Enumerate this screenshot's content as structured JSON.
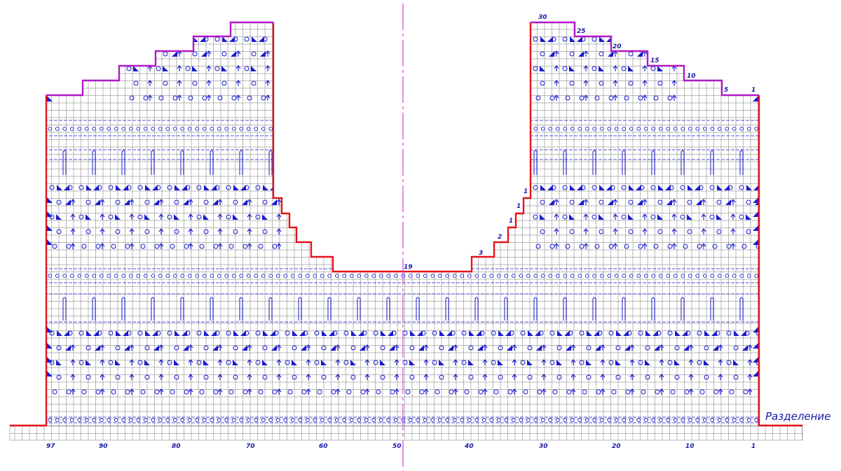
{
  "chart": {
    "caption": "Разделение",
    "axis_labels": [
      "97",
      "90",
      "80",
      "70",
      "60",
      "50",
      "40",
      "30",
      "20",
      "10",
      "1"
    ],
    "center_row_label": "19",
    "right_neck_step_labels": [
      "1",
      "1",
      "1",
      "2",
      "3"
    ],
    "right_shoulder_labels": [
      "30",
      "25",
      "20",
      "15",
      "10",
      "5",
      "1"
    ],
    "colors": {
      "grid": "#8c8c8c",
      "outline": "#e4141a",
      "shoulder": "#b018c8",
      "symbols": "#1a1ad0",
      "centerline": "#e040e0",
      "labels": "#1a1aa8"
    },
    "stitch_count": 97,
    "symbols": [
      "yarn-over-circle",
      "decrease-triangle",
      "centered-decrease-arrow",
      "cable-loop",
      "double-dash-row"
    ]
  }
}
